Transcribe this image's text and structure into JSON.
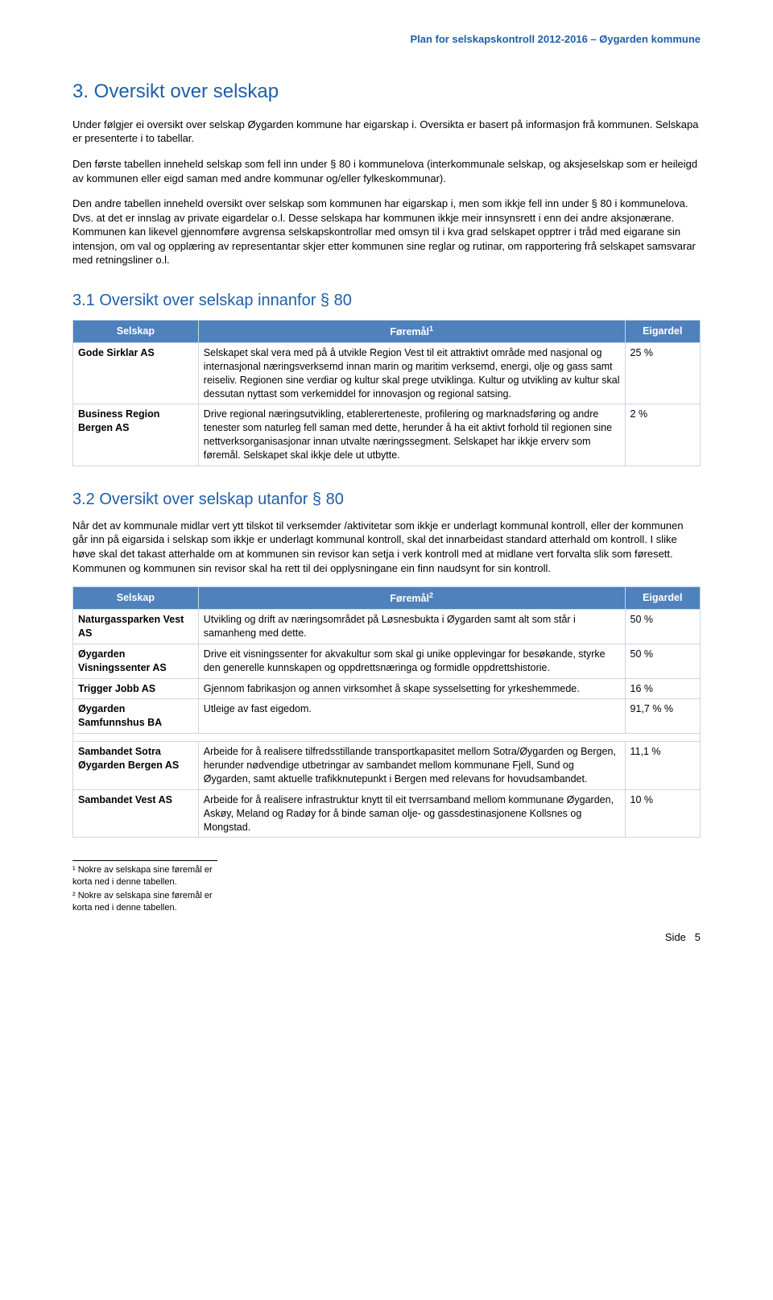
{
  "header": "Plan for selskapskontroll 2012-2016 – Øygarden kommune",
  "section3": {
    "title": "3. Oversikt over selskap",
    "p1": "Under følgjer ei oversikt over selskap Øygarden kommune har eigarskap i. Oversikta er basert på informasjon frå kommunen. Selskapa er presenterte i to tabellar.",
    "p2": "Den første tabellen inneheld selskap som fell inn under § 80 i kommunelova (interkommunale selskap, og aksjeselskap som er heileigd av kommunen eller eigd saman med andre kommunar og/eller fylkeskommunar).",
    "p3": "Den andre tabellen inneheld oversikt over selskap som kommunen har eigarskap i, men som ikkje fell inn under § 80 i kommunelova. Dvs. at det er innslag av private eigardelar o.l. Desse selskapa har kommunen ikkje meir innsynsrett i enn dei andre aksjonærane. Kommunen kan likevel gjennomføre avgrensa selskapskontrollar med omsyn til i kva grad selskapet opptrer i tråd med eigarane sin intensjon, om val og opplæring av representantar skjer etter kommunen sine reglar og rutinar, om rapportering frå selskapet samsvarar med retningsliner o.l."
  },
  "sub31": {
    "title": "3.1 Oversikt over selskap innanfor § 80",
    "table": {
      "headers": {
        "c1": "Selskap",
        "c2": "Føremål",
        "c3": "Eigardel"
      },
      "fnref1": "1",
      "rows": [
        {
          "company": "Gode Sirklar AS",
          "purpose": "Selskapet skal vera med på å utvikle Region Vest til eit attraktivt område med nasjonal og internasjonal næringsverksemd innan marin og maritim verksemd, energi, olje og gass samt reiseliv. Regionen sine verdiar og kultur skal prege utviklinga. Kultur og utvikling av kultur skal dessutan nyttast som verkemiddel for innovasjon og regional satsing.",
          "share": "25 %"
        },
        {
          "company": "Business Region Bergen AS",
          "purpose": "Drive regional næringsutvikling, etablererteneste, profilering og marknadsføring og andre tenester som naturleg fell saman med dette, herunder å ha eit aktivt forhold til regionen sine nettverksorganisasjonar innan utvalte næringssegment. Selskapet har ikkje erverv som føremål. Selskapet skal ikkje dele ut utbytte.",
          "share": "2 %"
        }
      ]
    }
  },
  "sub32": {
    "title": "3.2 Oversikt over selskap utanfor § 80",
    "p1": "Når det av kommunale midlar vert ytt tilskot til verksemder /aktivitetar som ikkje er underlagt kommunal kontroll, eller der kommunen går inn på eigarsida i selskap som ikkje er underlagt kommunal kontroll, skal det innarbeidast standard atterhald om kontroll. I slike høve skal det takast atterhalde om at kommunen sin revisor kan setja i verk kontroll med at midlane vert forvalta slik som føresett. Kommunen og kommunen sin revisor skal ha rett til dei opplysningane ein finn naudsynt for sin kontroll.",
    "table": {
      "headers": {
        "c1": "Selskap",
        "c2": "Føremål",
        "c3": "Eigardel"
      },
      "fnref2": "2",
      "rows": [
        {
          "company": "Naturgassparken Vest AS",
          "purpose": "Utvikling og drift av næringsområdet på Løsnesbukta i Øygarden samt alt som står i samanheng med dette.",
          "share": "50 %"
        },
        {
          "company": "Øygarden Visningssenter AS",
          "purpose": "Drive eit visningssenter for akvakultur som skal gi unike opplevingar for besøkande, styrke den generelle kunnskapen og oppdrettsnæringa og formidle oppdrettshistorie.",
          "share": "50 %"
        },
        {
          "company": "Trigger Jobb AS",
          "purpose": "Gjennom fabrikasjon og annen virksomhet å skape sysselsetting for yrkeshemmede.",
          "share": "16 %"
        },
        {
          "company": "Øygarden Samfunnshus BA",
          "purpose": "Utleige av fast eigedom.",
          "share": "91,7 % %"
        },
        {
          "company": "Sambandet Sotra Øygarden Bergen AS",
          "purpose": "Arbeide for å realisere tilfredsstillande transportkapasitet mellom Sotra/Øygarden og Bergen, herunder nødvendige utbetringar av sambandet mellom kommunane Fjell, Sund og Øygarden, samt aktuelle trafikknutepunkt i Bergen med relevans for hovudsambandet.",
          "share": "11,1 %",
          "gap_before": true
        },
        {
          "company": "Sambandet Vest AS",
          "purpose": "Arbeide for å realisere infrastruktur knytt til eit tverrsamband mellom kommunane Øygarden, Askøy, Meland og Radøy for å binde saman olje- og gassdestinasjonene Kollsnes og Mongstad.",
          "share": "10 %"
        }
      ]
    }
  },
  "footnotes": {
    "f1": "¹ Nokre av selskapa sine føremål er korta ned i denne tabellen.",
    "f2": "² Nokre av selskapa sine føremål er korta ned i denne tabellen."
  },
  "footer": {
    "label": "Side",
    "num": "5"
  },
  "style": {
    "header_color": "#1f5ea8",
    "table_header_bg": "#4f81bd",
    "table_header_fg": "#ffffff",
    "border_color": "#ccd6e4",
    "body_font_size": 13,
    "heading1_font_size": 24,
    "heading2_font_size": 20
  }
}
